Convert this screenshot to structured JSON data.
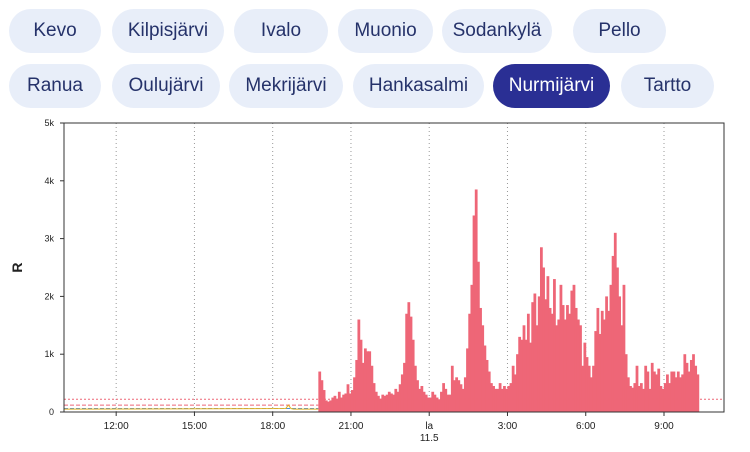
{
  "stations": {
    "rows": [
      [
        "Kevo",
        "Kilpisjärvi",
        "Ivalo",
        "Muonio",
        "Sodankylä",
        "Pello"
      ],
      [
        "Ranua",
        "Oulujärvi",
        "Mekrijärvi",
        "Hankasalmi",
        "Nurmijärvi",
        "Tartto"
      ]
    ],
    "selected": "Nurmijärvi"
  },
  "colors": {
    "tab_bg": "#e8eef9",
    "tab_text": "#25326a",
    "tab_active_bg": "#2a2f94",
    "bars": "#ee6677",
    "threshold_line": "#ee6677",
    "blue_trace": "#4a90d9",
    "yellow_trace": "#e0b020"
  },
  "chart_data": {
    "type": "bar",
    "ylabel": "R",
    "xlabel": "",
    "x_unit": "hours since 10 May 10:00",
    "xlim": [
      0,
      25.3
    ],
    "ylim": [
      0,
      5000
    ],
    "yticks": [
      0,
      1000,
      2000,
      3000,
      4000,
      5000
    ],
    "ytick_labels": [
      "0",
      "1k",
      "2k",
      "3k",
      "4k",
      "5k"
    ],
    "xticks": [
      {
        "x": 2,
        "label": "12:00"
      },
      {
        "x": 5,
        "label": "15:00"
      },
      {
        "x": 8,
        "label": "18:00"
      },
      {
        "x": 11,
        "label": "21:00"
      },
      {
        "x": 14,
        "label": "la",
        "sublabel": "11.5"
      },
      {
        "x": 17,
        "label": "3:00"
      },
      {
        "x": 20,
        "label": "6:00"
      },
      {
        "x": 23,
        "label": "9:00"
      }
    ],
    "grid": "vertical dotted",
    "series": [
      {
        "type": "bar",
        "x_start": 9.75,
        "step_hours": 0.0833,
        "values": [
          700,
          550,
          380,
          200,
          180,
          200,
          250,
          280,
          230,
          350,
          250,
          300,
          320,
          480,
          320,
          380,
          600,
          900,
          1600,
          1250,
          850,
          1100,
          1050,
          1050,
          800,
          500,
          350,
          280,
          230,
          300,
          280,
          300,
          350,
          320,
          300,
          400,
          350,
          480,
          650,
          850,
          1700,
          1900,
          1650,
          1250,
          800,
          550,
          400,
          450,
          350,
          300,
          250,
          250,
          350,
          300,
          250,
          220,
          350,
          500,
          400,
          300,
          300,
          800,
          550,
          600,
          550,
          480,
          400,
          600,
          1100,
          1700,
          2200,
          3400,
          3850,
          2600,
          1800,
          1500,
          1150,
          900,
          700,
          500,
          450,
          400,
          400,
          500,
          400,
          450,
          400,
          450,
          500,
          800,
          650,
          1000,
          1300,
          1250,
          1500,
          1250,
          1700,
          1200,
          1900,
          2050,
          1500,
          2000,
          2850,
          2500,
          1950,
          2350,
          1800,
          1700,
          2300,
          1500,
          1600,
          2200,
          1850,
          1600,
          1850,
          1700,
          2100,
          2200,
          1800,
          1600,
          1500,
          800,
          1200,
          950,
          800,
          600,
          800,
          1400,
          1800,
          1350,
          1750,
          1600,
          2000,
          1750,
          2200,
          2700,
          3100,
          2500,
          2000,
          1500,
          2200,
          1000,
          600,
          450,
          420,
          500,
          800,
          450,
          500,
          400,
          800,
          700,
          400,
          850,
          700,
          650,
          750,
          450,
          400,
          500,
          650,
          500,
          700,
          700,
          600,
          700,
          600,
          650,
          1000,
          850,
          700,
          900,
          1000,
          800,
          650
        ],
        "color": "#ee6677"
      },
      {
        "type": "line",
        "name": "",
        "x": [
          0,
          9.75
        ],
        "y": [
          60,
          60
        ],
        "style": "dashed",
        "color": "#4a90d9"
      },
      {
        "type": "line",
        "name": "",
        "x": [
          0,
          9.75
        ],
        "y": [
          120,
          120
        ],
        "style": "dashed",
        "color": "#ee6677"
      },
      {
        "type": "line",
        "name": "",
        "x": [
          0,
          25.3
        ],
        "y": [
          220,
          220
        ],
        "style": "dotted",
        "color": "#ee6677"
      },
      {
        "type": "line",
        "name": "",
        "x": [
          0,
          8.5,
          8.6,
          8.7,
          8.8,
          9.75
        ],
        "y": [
          50,
          60,
          120,
          60,
          50,
          50
        ],
        "style": "solid",
        "color": "#e0b020"
      }
    ]
  }
}
